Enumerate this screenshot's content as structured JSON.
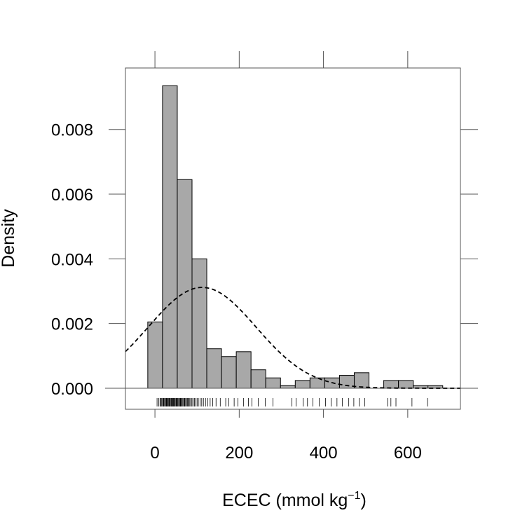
{
  "chart_data": {
    "type": "bar",
    "subtype": "histogram with normal density overlay and rug",
    "title": "",
    "xlabel": "ECEC (mmol kg",
    "xlabel_superscript": "−1",
    "xlabel_suffix": ")",
    "ylabel": "Density",
    "xlim": [
      -70,
      725
    ],
    "ylim": [
      -0.00065,
      0.0099
    ],
    "x_ticks": [
      0,
      200,
      400,
      600
    ],
    "y_ticks": [
      "0.000",
      "0.002",
      "0.004",
      "0.006",
      "0.008"
    ],
    "grid": false,
    "bin_width": 35,
    "bins": [
      {
        "x0": -17,
        "x1": 18,
        "density": 0.00205
      },
      {
        "x0": 18,
        "x1": 53,
        "density": 0.00935
      },
      {
        "x0": 53,
        "x1": 88,
        "density": 0.00645
      },
      {
        "x0": 88,
        "x1": 123,
        "density": 0.004
      },
      {
        "x0": 123,
        "x1": 158,
        "density": 0.00122
      },
      {
        "x0": 158,
        "x1": 193,
        "density": 0.00098
      },
      {
        "x0": 193,
        "x1": 228,
        "density": 0.00113
      },
      {
        "x0": 228,
        "x1": 263,
        "density": 0.00057
      },
      {
        "x0": 263,
        "x1": 298,
        "density": 0.00032
      },
      {
        "x0": 298,
        "x1": 333,
        "density": 8e-05
      },
      {
        "x0": 333,
        "x1": 368,
        "density": 0.00024
      },
      {
        "x0": 368,
        "x1": 403,
        "density": 0.00032
      },
      {
        "x0": 403,
        "x1": 438,
        "density": 0.00032
      },
      {
        "x0": 438,
        "x1": 473,
        "density": 0.0004
      },
      {
        "x0": 473,
        "x1": 508,
        "density": 0.00048
      },
      {
        "x0": 508,
        "x1": 543,
        "density": 0.0
      },
      {
        "x0": 543,
        "x1": 578,
        "density": 0.00024
      },
      {
        "x0": 578,
        "x1": 613,
        "density": 0.00024
      },
      {
        "x0": 613,
        "x1": 648,
        "density": 8e-05
      },
      {
        "x0": 648,
        "x1": 683,
        "density": 8e-05
      }
    ],
    "normal_curve": {
      "mean": 112,
      "sd": 128
    },
    "rug": [
      5,
      9,
      12,
      14,
      16,
      18,
      20,
      21,
      23,
      24,
      25,
      27,
      28,
      30,
      31,
      32,
      34,
      35,
      36,
      38,
      39,
      40,
      42,
      43,
      44,
      46,
      47,
      48,
      50,
      51,
      52,
      54,
      55,
      57,
      58,
      60,
      61,
      63,
      64,
      66,
      68,
      70,
      71,
      73,
      75,
      77,
      79,
      81,
      83,
      86,
      88,
      91,
      94,
      97,
      100,
      103,
      107,
      111,
      115,
      120,
      125,
      131,
      137,
      145,
      155,
      168,
      175,
      188,
      197,
      210,
      222,
      230,
      245,
      262,
      280,
      325,
      335,
      352,
      362,
      375,
      390,
      405,
      418,
      432,
      445,
      460,
      472,
      485,
      498,
      552,
      560,
      572,
      610,
      647
    ]
  }
}
